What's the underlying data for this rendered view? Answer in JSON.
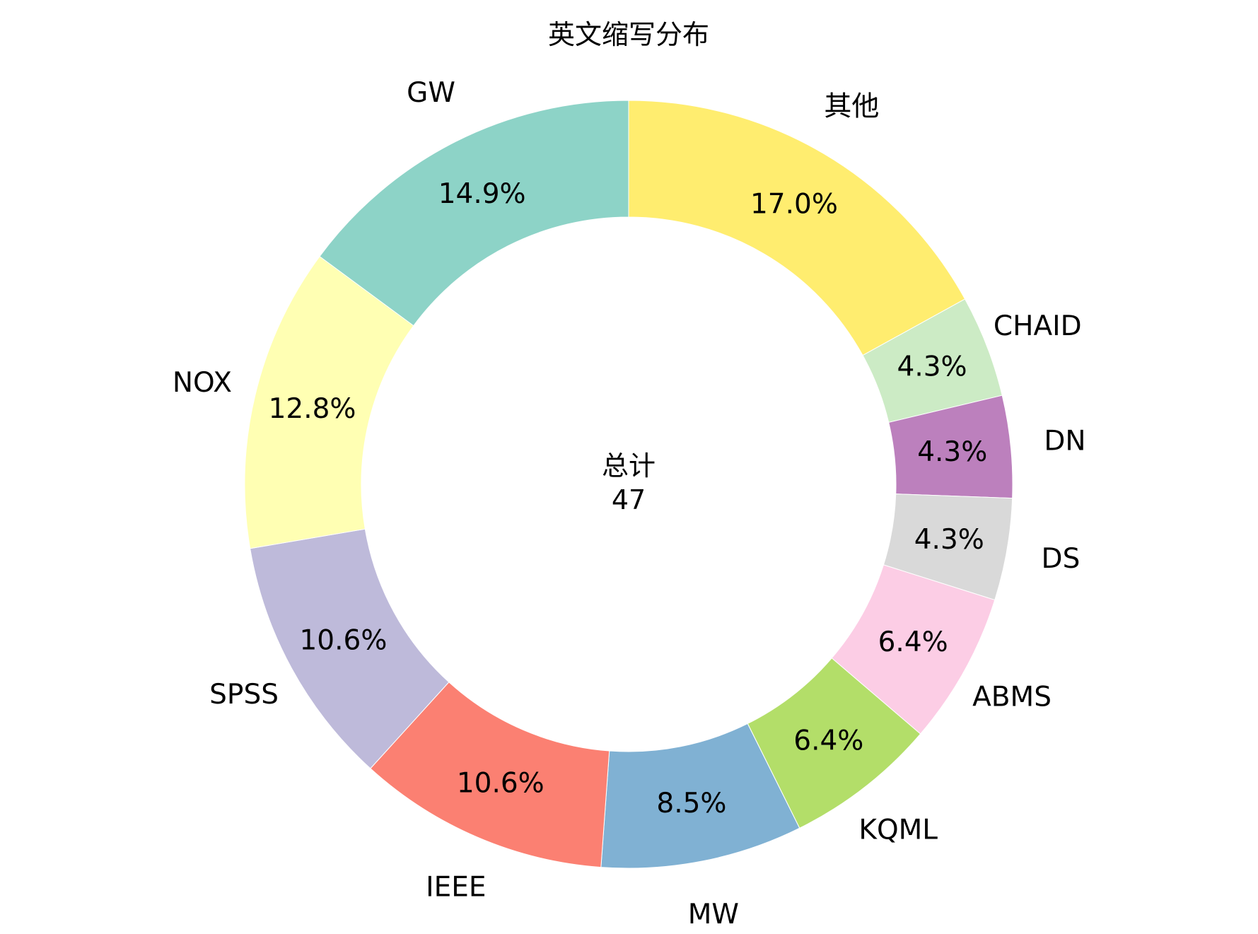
{
  "chart_data": {
    "type": "pie",
    "variant": "donut",
    "title": "英文缩写分布",
    "center_label": "总计",
    "center_value": "47",
    "categories": [
      "其他",
      "CHAID",
      "DN",
      "DS",
      "ABMS",
      "KQML",
      "MW",
      "IEEE",
      "SPSS",
      "NOX",
      "GW"
    ],
    "values": [
      17.0,
      4.3,
      4.3,
      4.3,
      6.4,
      6.4,
      8.5,
      10.6,
      10.6,
      12.8,
      14.9
    ],
    "value_labels": [
      "17.0%",
      "4.3%",
      "4.3%",
      "4.3%",
      "6.4%",
      "6.4%",
      "8.5%",
      "10.6%",
      "10.6%",
      "12.8%",
      "14.9%"
    ],
    "colors": [
      "#ffed6f",
      "#ccebc5",
      "#bc80bd",
      "#d9d9d9",
      "#fccde5",
      "#b3de69",
      "#80b1d3",
      "#fb8072",
      "#bebada",
      "#ffffb3",
      "#8dd3c7"
    ],
    "start_angle_deg": 90,
    "direction": "clockwise",
    "legend": "none"
  }
}
